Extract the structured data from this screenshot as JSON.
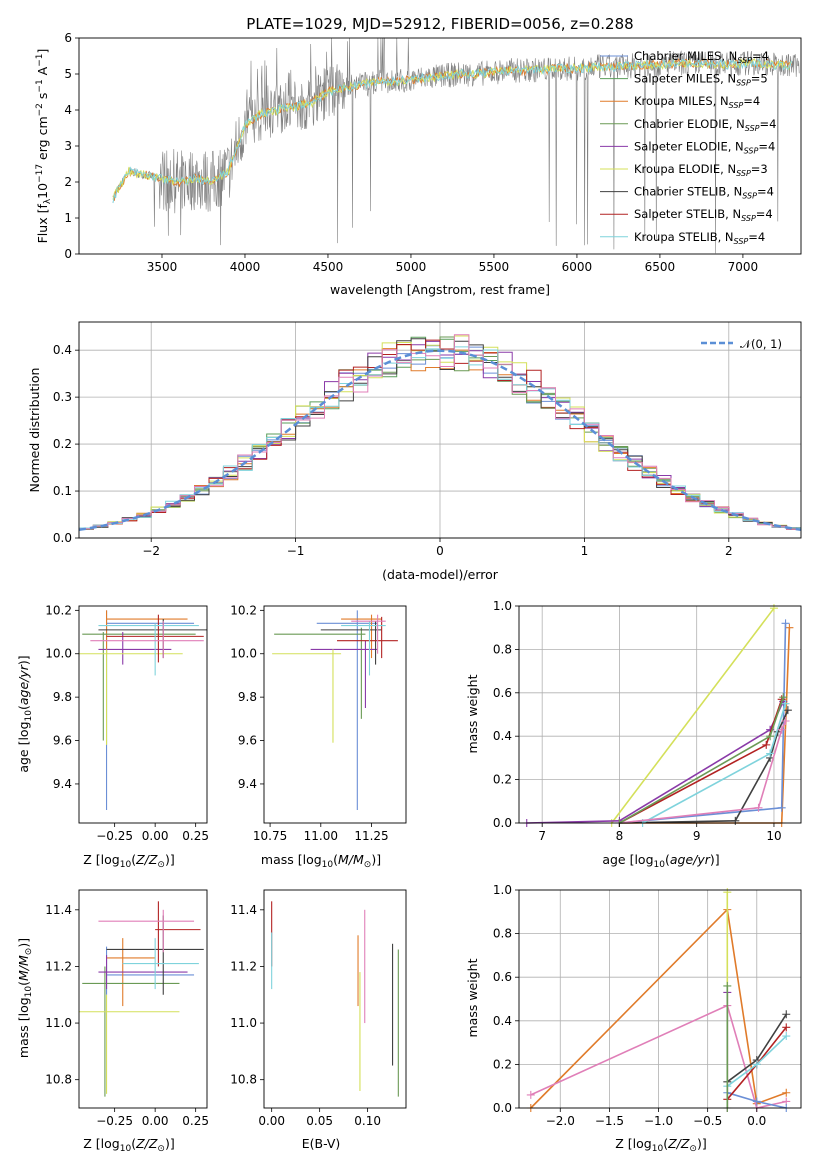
{
  "spectrum": {
    "title": "PLATE=1029, MJD=52912, FIBERID=0056, z=0.288",
    "xlabel": "wavelength [Angstrom, rest frame]",
    "ylabel": "Flux [f_λ10^-17 erg cm^-2 s^-1 A^-1]",
    "xlim": [
      3000,
      7350
    ],
    "ylim": [
      0,
      6
    ],
    "xticks": [
      3500,
      4000,
      4500,
      5000,
      5500,
      6000,
      6500,
      7000
    ],
    "yticks": [
      0,
      1,
      2,
      3,
      4,
      5,
      6
    ],
    "legend": [
      {
        "label": "Chabrier MILES, N_SSP=4",
        "color": "#6b8fd6"
      },
      {
        "label": "Salpeter MILES, N_SSP=5",
        "color": "#5a9e5a"
      },
      {
        "label": "Kroupa MILES, N_SSP=4",
        "color": "#e07b2a"
      },
      {
        "label": "Chabrier ELODIE, N_SSP=4",
        "color": "#6a9a55"
      },
      {
        "label": "Salpeter ELODIE, N_SSP=4",
        "color": "#8a3aa8"
      },
      {
        "label": "Kroupa ELODIE, N_SSP=3",
        "color": "#d4e05a"
      },
      {
        "label": "Chabrier STELIB, N_SSP=4",
        "color": "#404040"
      },
      {
        "label": "Salpeter STELIB, N_SSP=4",
        "color": "#b22222"
      },
      {
        "label": "Kroupa STELIB, N_SSP=4",
        "color": "#7fd3dc"
      }
    ],
    "legend_placement": "upper right",
    "data_color": "#808080"
  },
  "residuals": {
    "xlabel": "(data-model)/error",
    "ylabel": "Normed distribution",
    "xlim": [
      -2.5,
      2.5
    ],
    "ylim": [
      0,
      0.46
    ],
    "xticks": [
      -2,
      -1,
      0,
      1,
      2
    ],
    "xtick_labels": [
      "−2",
      "−1",
      "0",
      "1",
      "2"
    ],
    "yticks": [
      0.0,
      0.1,
      0.2,
      0.3,
      0.4
    ],
    "ytick_labels": [
      "0.0",
      "0.1",
      "0.2",
      "0.3",
      "0.4"
    ],
    "gaussian_label": "𝒩(0, 1)",
    "gaussian_color": "#5b8fd6",
    "grid": true
  },
  "panels": {
    "age_vs_Z": {
      "xlabel": "Z [log10(Z/Z⊙)]",
      "ylabel": "age  [log10(age/yr)]",
      "xlim": [
        -0.47,
        0.32
      ],
      "ylim": [
        9.22,
        10.22
      ],
      "xticks": [
        -0.25,
        0.0,
        0.25
      ],
      "xtick_labels": [
        "−0.25",
        "0.00",
        "0.25"
      ],
      "yticks": [
        9.4,
        9.6,
        9.8,
        10.0,
        10.2
      ],
      "ytick_labels": [
        "9.4",
        "9.6",
        "9.8",
        "10.0",
        "10.2"
      ]
    },
    "age_vs_mass": {
      "xlabel": "mass [log10(M/M⊙)]",
      "ylabel": "",
      "xlim": [
        10.72,
        11.42
      ],
      "ylim": [
        9.22,
        10.22
      ],
      "xticks": [
        10.75,
        11.0,
        11.25
      ],
      "xtick_labels": [
        "10.75",
        "11.00",
        "11.25"
      ],
      "yticks": [
        9.4,
        9.6,
        9.8,
        10.0,
        10.2
      ],
      "ytick_labels": [
        "9.4",
        "9.6",
        "9.8",
        "10.0",
        "10.2"
      ]
    },
    "weight_vs_age": {
      "xlabel": "age  [log10(age/yr)]",
      "ylabel": "mass weight",
      "xlim": [
        6.7,
        10.35
      ],
      "ylim": [
        0,
        1
      ],
      "xticks": [
        7,
        8,
        9,
        10
      ],
      "xtick_labels": [
        "7",
        "8",
        "9",
        "10"
      ],
      "yticks": [
        0.0,
        0.2,
        0.4,
        0.6,
        0.8,
        1.0
      ],
      "ytick_labels": [
        "0.0",
        "0.2",
        "0.4",
        "0.6",
        "0.8",
        "1.0"
      ]
    },
    "mass_vs_Z": {
      "xlabel": "Z [log10(Z/Z⊙)]",
      "ylabel": "mass [log10(M/M⊙)]",
      "xlim": [
        -0.47,
        0.32
      ],
      "ylim": [
        10.7,
        11.47
      ],
      "xticks": [
        -0.25,
        0.0,
        0.25
      ],
      "xtick_labels": [
        "−0.25",
        "0.00",
        "0.25"
      ],
      "yticks": [
        10.8,
        11.0,
        11.2,
        11.4
      ],
      "ytick_labels": [
        "10.8",
        "11.0",
        "11.2",
        "11.4"
      ]
    },
    "mass_vs_EBV": {
      "xlabel": "E(B-V)",
      "ylabel": "",
      "xlim": [
        -0.008,
        0.14
      ],
      "ylim": [
        10.7,
        11.47
      ],
      "xticks": [
        0.0,
        0.05,
        0.1
      ],
      "xtick_labels": [
        "0.00",
        "0.05",
        "0.10"
      ],
      "yticks": [
        10.8,
        11.0,
        11.2,
        11.4
      ],
      "ytick_labels": [
        "10.8",
        "11.0",
        "11.2",
        "11.4"
      ]
    },
    "weight_vs_Z": {
      "xlabel": "Z [log10(Z/Z⊙)]",
      "ylabel": "mass weight",
      "xlim": [
        -2.42,
        0.45
      ],
      "ylim": [
        0,
        1
      ],
      "xticks": [
        -2.0,
        -1.5,
        -1.0,
        -0.5,
        0.0
      ],
      "xtick_labels": [
        "−2.0",
        "−1.5",
        "−1.0",
        "−0.5",
        "0.0"
      ],
      "yticks": [
        0.0,
        0.2,
        0.4,
        0.6,
        0.8,
        1.0
      ],
      "ytick_labels": [
        "0.0",
        "0.2",
        "0.4",
        "0.6",
        "0.8",
        "1.0"
      ]
    }
  },
  "chart_data": [
    {
      "type": "line",
      "title": "PLATE=1029, MJD=52912, FIBERID=0056, z=0.288",
      "xlabel": "wavelength [Angstrom, rest frame]",
      "ylabel": "Flux [f_λ10^-17 erg cm^-2 s^-1 A^-1]",
      "xlim": [
        3000,
        7350
      ],
      "ylim": [
        0,
        6
      ],
      "x": [
        3200,
        3300,
        3400,
        3500,
        3600,
        3700,
        3800,
        3900,
        4000,
        4100,
        4200,
        4300,
        4400,
        4500,
        4600,
        4700,
        4800,
        4900,
        5000,
        5100,
        5200,
        5300,
        5400,
        5500,
        5600,
        5700,
        5800,
        5900,
        6000,
        6100,
        6200,
        6300,
        6400,
        6500,
        6600,
        6700,
        6800,
        6900,
        7000,
        7100,
        7200
      ],
      "series": [
        {
          "name": "model (Kroupa STELIB, N_SSP=4)",
          "values": [
            1.5,
            2.3,
            2.2,
            2.1,
            2.0,
            2.1,
            2.0,
            2.3,
            3.6,
            3.9,
            4.0,
            4.1,
            4.2,
            4.5,
            4.6,
            4.7,
            4.8,
            4.8,
            4.85,
            4.9,
            4.95,
            5.0,
            5.0,
            5.05,
            5.1,
            5.1,
            5.12,
            5.15,
            5.15,
            5.2,
            5.2,
            5.22,
            5.25,
            5.25,
            5.3,
            5.3,
            5.3,
            5.25,
            5.3,
            5.3,
            5.25
          ]
        }
      ]
    },
    {
      "type": "bar",
      "xlabel": "(data-model)/error",
      "ylabel": "Normed distribution",
      "xlim": [
        -2.5,
        2.5
      ],
      "ylim": [
        0,
        0.46
      ],
      "bin_width": 0.1,
      "series": [
        {
          "name": "Chabrier MILES, N_SSP=4",
          "values": [
            0.03,
            0.03,
            0.04,
            0.05,
            0.06,
            0.07,
            0.08,
            0.09,
            0.1,
            0.11,
            0.12,
            0.13,
            0.15,
            0.16,
            0.18,
            0.2,
            0.21,
            0.23,
            0.25,
            0.27,
            0.3,
            0.33,
            0.35,
            0.34,
            0.36,
            0.38,
            0.39,
            0.4,
            0.39,
            0.41,
            0.4,
            0.41,
            0.42,
            0.41,
            0.4,
            0.39,
            0.38,
            0.32,
            0.34,
            0.33,
            0.3,
            0.28,
            0.25,
            0.23,
            0.21,
            0.19,
            0.17,
            0.15,
            0.13,
            0.12
          ]
        },
        {
          "name": "Kroupa ELODIE, N_SSP=3",
          "values": [
            0.02,
            0.03,
            0.04,
            0.05,
            0.06,
            0.07,
            0.08,
            0.09,
            0.1,
            0.11,
            0.12,
            0.13,
            0.14,
            0.16,
            0.18,
            0.2,
            0.21,
            0.23,
            0.26,
            0.28,
            0.31,
            0.32,
            0.34,
            0.35,
            0.37,
            0.38,
            0.39,
            0.4,
            0.4,
            0.4,
            0.39,
            0.4,
            0.41,
            0.4,
            0.39,
            0.37,
            0.35,
            0.33,
            0.31,
            0.3,
            0.28,
            0.26,
            0.24,
            0.22,
            0.2,
            0.18,
            0.16,
            0.14,
            0.12,
            0.11
          ]
        }
      ],
      "gaussian": {
        "name": "𝒩(0, 1)",
        "mean": 0,
        "sigma": 1
      }
    }
  ]
}
